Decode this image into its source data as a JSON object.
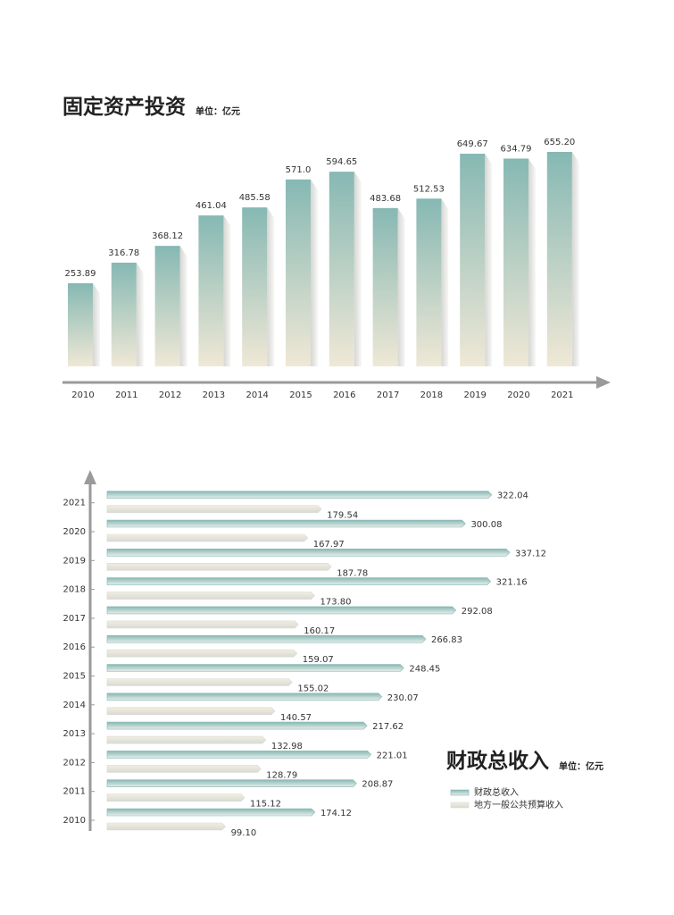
{
  "chart_data": [
    {
      "type": "bar",
      "title": "固定资产投资",
      "unit": "单位：亿元",
      "color": "#86b8b3",
      "categories": [
        "2010",
        "2011",
        "2012",
        "2013",
        "2014",
        "2015",
        "2016",
        "2017",
        "2018",
        "2019",
        "2020",
        "2021"
      ],
      "values": [
        253.89,
        316.78,
        368.12,
        461.04,
        485.58,
        571.0,
        594.65,
        483.68,
        512.53,
        649.67,
        634.79,
        655.2
      ],
      "value_labels": [
        "253.89",
        "316.78",
        "368.12",
        "461.04",
        "485.58",
        "571.0",
        "594.65",
        "483.68",
        "512.53",
        "649.67",
        "634.79",
        "655.20"
      ]
    },
    {
      "type": "barh",
      "title": "财政总收入",
      "unit": "单位：亿元",
      "categories": [
        "2010",
        "2011",
        "2012",
        "2013",
        "2014",
        "2015",
        "2016",
        "2017",
        "2018",
        "2019",
        "2020",
        "2021"
      ],
      "series": [
        {
          "name": "财政总收入",
          "color": "#86b8b3",
          "values": [
            174.12,
            208.87,
            221.01,
            217.62,
            230.07,
            248.45,
            266.83,
            292.08,
            321.16,
            337.12,
            300.08,
            322.04
          ],
          "value_labels": [
            "174.12",
            "208.87",
            "221.01",
            "217.62",
            "230.07",
            "248.45",
            "266.83",
            "292.08",
            "321.16",
            "337.12",
            "300.08",
            "322.04"
          ]
        },
        {
          "name": "地方一般公共预算收入",
          "color": "#d9d9d6",
          "values": [
            99.1,
            115.12,
            128.79,
            132.98,
            140.57,
            155.02,
            159.07,
            160.17,
            173.8,
            187.78,
            167.97,
            179.54
          ],
          "value_labels": [
            "99.10",
            "115.12",
            "128.79",
            "132.98",
            "140.57",
            "155.02",
            "159.07",
            "160.17",
            "173.80",
            "187.78",
            "167.97",
            "179.54"
          ]
        }
      ]
    }
  ]
}
